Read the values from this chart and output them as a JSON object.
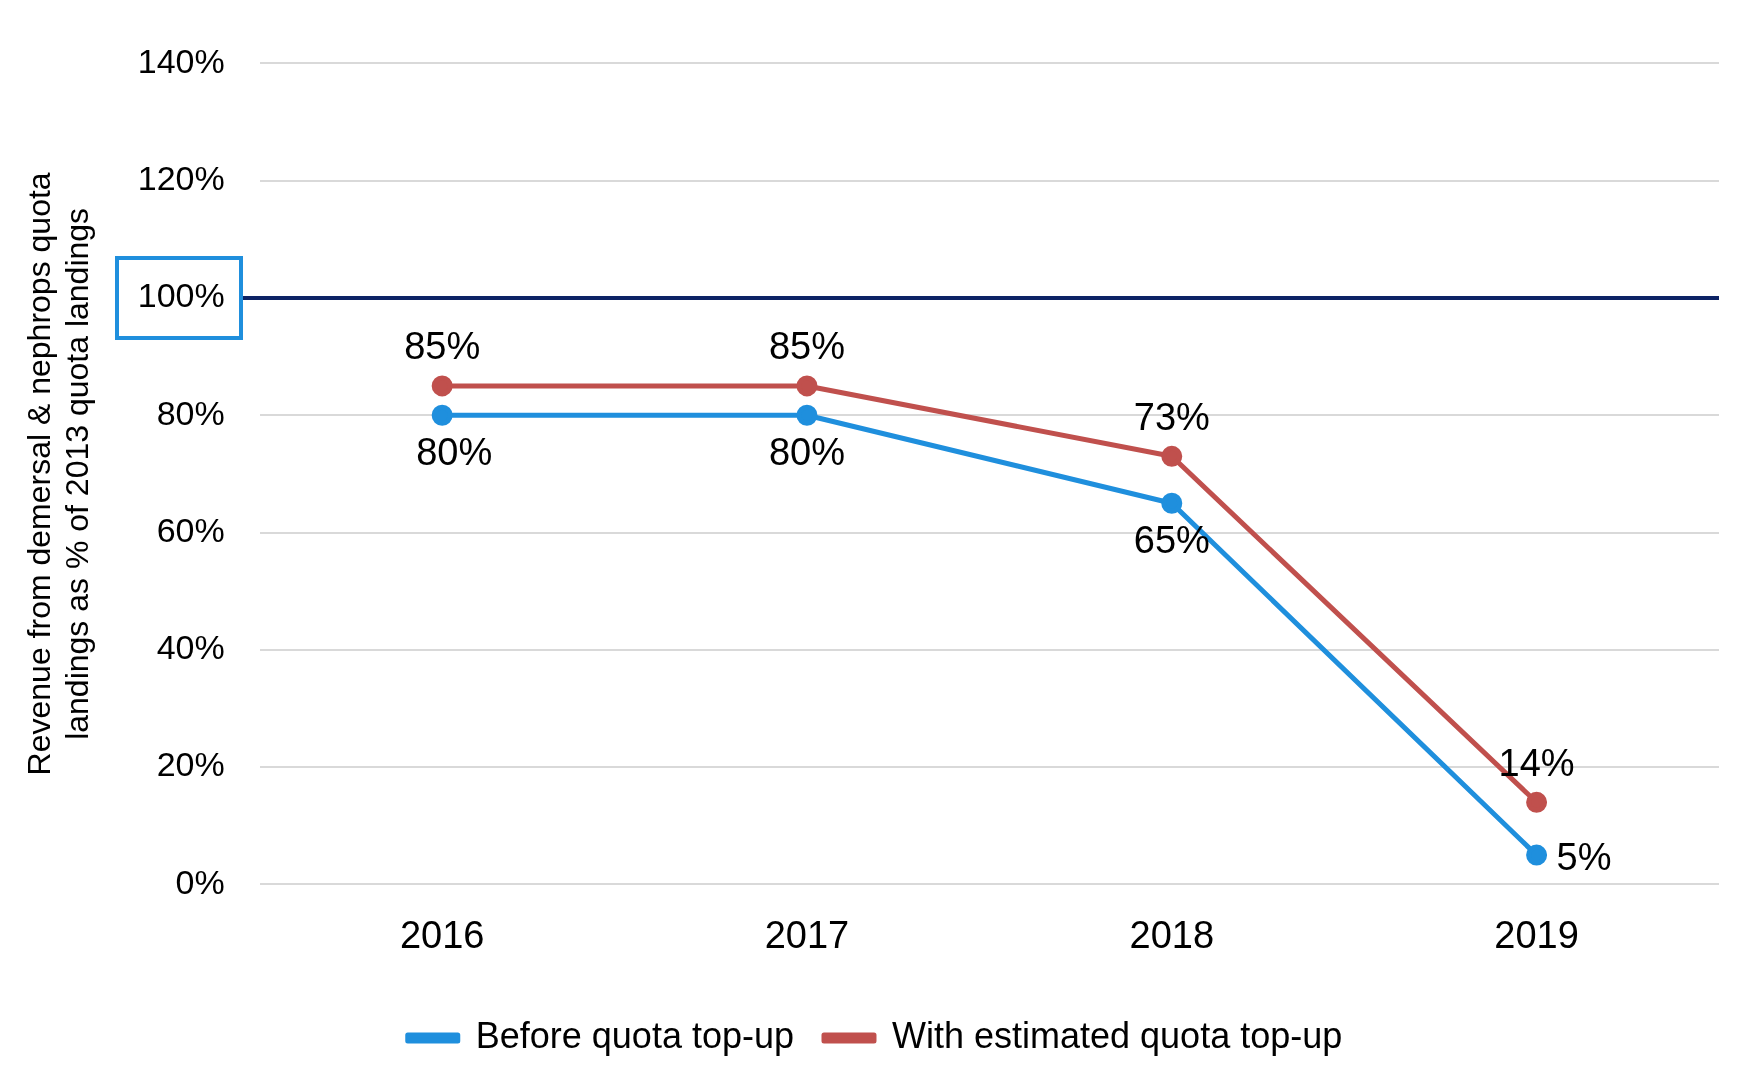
{
  "chart_data": {
    "type": "line",
    "ylabel": "Revenue from demersal & nephrops quota landings as % of 2013 quota landings",
    "categories": [
      "2016",
      "2017",
      "2018",
      "2019"
    ],
    "series": [
      {
        "name": "Before quota top-up",
        "color": "#1f8fdd",
        "values": [
          80,
          80,
          65,
          5
        ],
        "value_labels": [
          "80%",
          "80%",
          "65%",
          "5%"
        ]
      },
      {
        "name": "With estimated quota top-up",
        "color": "#c0504d",
        "values": [
          85,
          85,
          73,
          14
        ],
        "value_labels": [
          "85%",
          "85%",
          "73%",
          "14%"
        ]
      }
    ],
    "ylim": [
      0,
      140
    ],
    "yticks": [
      {
        "value": 0,
        "label": "0%"
      },
      {
        "value": 20,
        "label": "20%"
      },
      {
        "value": 40,
        "label": "40%"
      },
      {
        "value": 60,
        "label": "60%"
      },
      {
        "value": 80,
        "label": "80%"
      },
      {
        "value": 100,
        "label": "100%"
      },
      {
        "value": 120,
        "label": "120%"
      },
      {
        "value": 140,
        "label": "140%"
      }
    ],
    "ref_lines": [
      {
        "axis": "y",
        "value": 100,
        "color": "#0d2365"
      }
    ],
    "grid": "y",
    "legend": "bottom",
    "marker": "circle",
    "line_style": "solid"
  }
}
